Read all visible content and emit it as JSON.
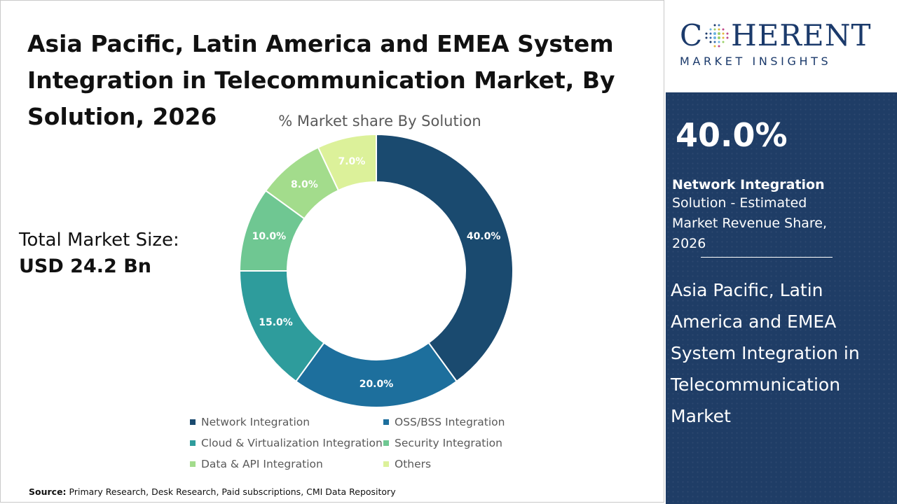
{
  "title": "Asia Pacific, Latin America and EMEA System Integration in Telecommunication Market, By Solution, 2026",
  "market_size": {
    "label": "Total Market Size:",
    "value": "USD 24.2 Bn"
  },
  "source": {
    "label": "Source:",
    "text": "Primary Research, Desk Research, Paid subscriptions, CMI Data Repository"
  },
  "logo": {
    "letters_before": "C",
    "letters_after": "HERENT",
    "sub": "MARKET INSIGHTS"
  },
  "highlight": {
    "percent": "40.0%",
    "segment": "Network Integration",
    "description": "Solution - Estimated Market Revenue Share, 2026",
    "market_name": "Asia Pacific, Latin America and EMEA System Integration in Telecommunication Market"
  },
  "colors": {
    "Network Integration": "#1a4a6f",
    "OSS/BSS Integration": "#1d6f9d",
    "Cloud & Virtualization Integration": "#2e9c9c",
    "Security Integration": "#6fc792",
    "Data & API Integration": "#a3dc8c",
    "Others": "#dcf19a",
    "panel": "#1f3d66",
    "brand": "#1b3a6b"
  },
  "chart_data": {
    "type": "pie",
    "title": "% Market share By Solution",
    "categories": [
      "Network Integration",
      "OSS/BSS Integration",
      "Cloud & Virtualization Integration",
      "Security Integration",
      "Data & API Integration",
      "Others"
    ],
    "values": [
      40.0,
      20.0,
      15.0,
      10.0,
      8.0,
      7.0
    ],
    "data_labels": [
      "40.0%",
      "20.0%",
      "15.0%",
      "10.0%",
      "8.0%",
      "7.0%"
    ],
    "legend_position": "bottom",
    "donut": true
  }
}
